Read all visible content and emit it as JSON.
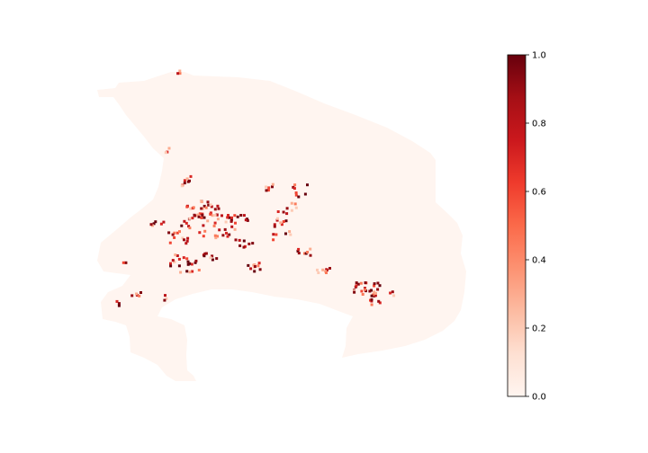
{
  "colorbar": {
    "colormap": "Reds",
    "range": [
      0.0,
      1.0
    ],
    "ticks": [
      {
        "value": 0.0,
        "label": "0.0"
      },
      {
        "value": 0.2,
        "label": "0.2"
      },
      {
        "value": 0.4,
        "label": "0.4"
      },
      {
        "value": 0.6,
        "label": "0.6"
      },
      {
        "value": 0.8,
        "label": "0.8"
      },
      {
        "value": 1.0,
        "label": "1.0"
      }
    ],
    "stops": [
      "#fff5f0",
      "#fee0d2",
      "#fcbba1",
      "#fc9272",
      "#fb6a4a",
      "#ef3b2c",
      "#cb181d",
      "#a50f15",
      "#67000d"
    ]
  },
  "map": {
    "base_fill": "#fff5f0",
    "hotspot_values": [
      1.0,
      0.95,
      0.9,
      0.8,
      0.7,
      0.6,
      0.45,
      0.3,
      0.2
    ]
  }
}
